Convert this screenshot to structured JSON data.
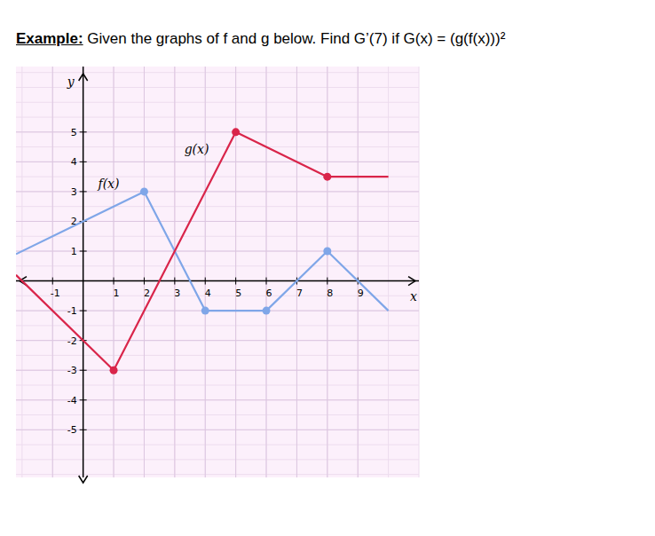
{
  "chart_data": {
    "type": "line",
    "title": "Example:",
    "subtitle": "Given the graphs of f and g below.  Find G’(7) if G(x) = (g(f(x)))²",
    "x_label": "x",
    "y_label": "y",
    "xlim": [
      -2.2,
      11
    ],
    "ylim": [
      -6.6,
      7.2
    ],
    "xticks": [
      -1,
      1,
      2,
      3,
      4,
      5,
      6,
      7,
      8,
      9
    ],
    "yticks": [
      -5,
      -4,
      -3,
      -2,
      -1,
      1,
      2,
      3,
      4,
      5
    ],
    "grid": true,
    "series": [
      {
        "name": "f(x)",
        "color": "#7fa6e8",
        "marker": "circle",
        "x": [
          -2.2,
          2,
          4,
          6,
          8,
          10
        ],
        "values": [
          0.9,
          3,
          -1,
          -1,
          1,
          -1
        ]
      },
      {
        "name": "g(x)",
        "color": "#d9254a",
        "marker": "circle",
        "x": [
          -2.2,
          1,
          5,
          8,
          10
        ],
        "values": [
          0.2,
          -3,
          5,
          3.5,
          3.5
        ]
      }
    ]
  }
}
